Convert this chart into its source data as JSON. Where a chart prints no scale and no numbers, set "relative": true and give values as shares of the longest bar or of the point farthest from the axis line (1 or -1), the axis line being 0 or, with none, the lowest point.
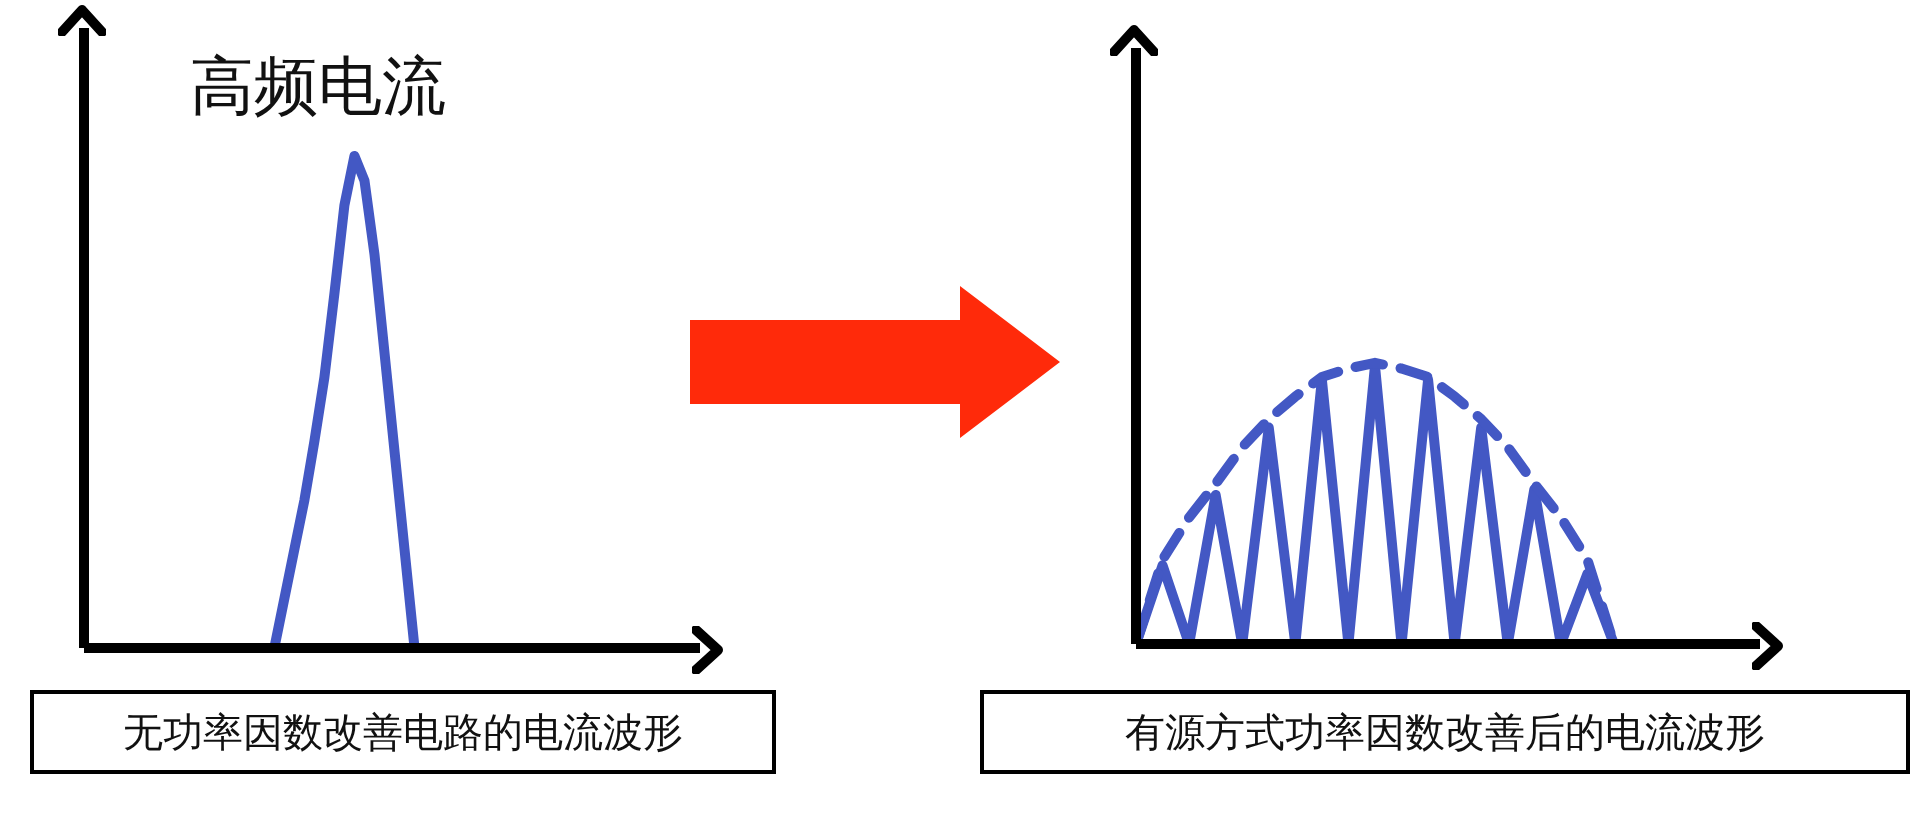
{
  "chart_data": [
    {
      "type": "line",
      "title": "高频电流",
      "xlabel": "无功率因数改善电路的电流波形",
      "relative": true,
      "categories": [
        null,
        null,
        null,
        null,
        null,
        null,
        null,
        null,
        null,
        null,
        null,
        null,
        null,
        null,
        null,
        null,
        null,
        null,
        null,
        null,
        null,
        null,
        null,
        null,
        null,
        null,
        null,
        null,
        null,
        null,
        null,
        null,
        null,
        null,
        null,
        null,
        null,
        null,
        null,
        null,
        null,
        null,
        null,
        null,
        null,
        null,
        null,
        null,
        null,
        null,
        null,
        null,
        null,
        null,
        null,
        null,
        null,
        null,
        null,
        null,
        null,
        null
      ],
      "series": [
        {
          "color": "#4358c4",
          "line_style": "solid",
          "values": [
            null,
            null,
            null,
            null,
            null,
            null,
            null,
            null,
            null,
            null,
            null,
            null,
            null,
            null,
            null,
            null,
            null,
            null,
            null,
            0,
            0.1,
            0.2,
            0.3,
            0.42,
            0.55,
            0.72,
            0.9,
            1,
            0.95,
            0.8,
            0.6,
            0.4,
            0.2,
            0,
            null,
            null,
            null,
            null,
            null,
            null,
            null,
            null,
            null,
            null,
            null,
            null,
            null,
            null,
            null,
            null,
            null,
            null,
            null,
            null,
            null,
            null,
            null,
            null,
            null,
            null,
            null,
            null
          ]
        }
      ]
    },
    {
      "type": "line",
      "xlabel": "有源方式功率因数改善后的电流波形",
      "relative": true,
      "categories": [
        null,
        null,
        null,
        null,
        null,
        null,
        null,
        null,
        null,
        null,
        null,
        null,
        null,
        null,
        null,
        null,
        null,
        null,
        null,
        null,
        null,
        null,
        null,
        null
      ],
      "series": [
        {
          "color": "#4358c4",
          "line_style": "solid",
          "values": [
            0,
            0.28,
            0,
            0.53,
            0,
            0.77,
            0,
            0.94,
            0,
            0.99,
            0,
            0.94,
            0,
            0.77,
            0,
            0.55,
            0,
            0.25,
            0,
            null,
            null,
            null,
            null,
            null
          ]
        },
        {
          "color": "#4358c4",
          "line_style": "dashed",
          "values": [
            0,
            0.3,
            0.45,
            0.57,
            0.7,
            0.8,
            0.88,
            0.95,
            0.98,
            1,
            0.98,
            0.95,
            0.88,
            0.8,
            0.7,
            0.57,
            0.45,
            0.3,
            0,
            null,
            null,
            null,
            null,
            null
          ]
        }
      ]
    }
  ]
}
